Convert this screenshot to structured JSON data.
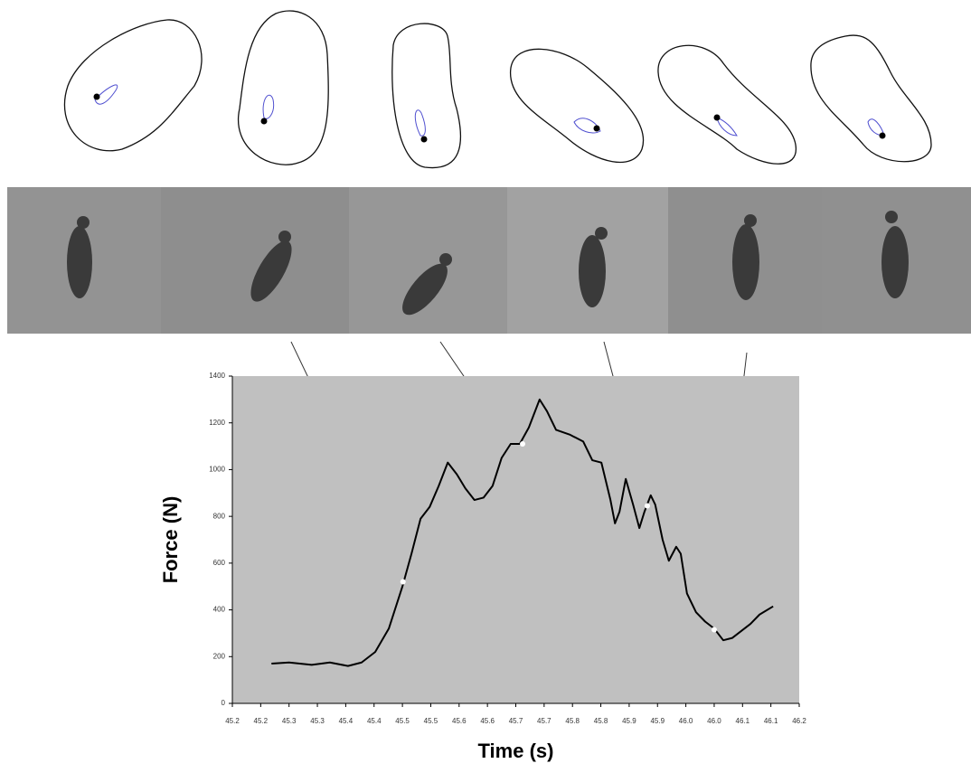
{
  "chart_data": {
    "type": "line",
    "xlabel": "Time (s)",
    "ylabel": "Force (N)",
    "xlim": [
      45.2,
      46.2
    ],
    "ylim": [
      0,
      1400
    ],
    "xticks": [
      {
        "value": 45.2,
        "label": "45.2"
      },
      {
        "value": 45.25,
        "label": "45.2"
      },
      {
        "value": 45.3,
        "label": "45.3"
      },
      {
        "value": 45.35,
        "label": "45.3"
      },
      {
        "value": 45.4,
        "label": "45.4"
      },
      {
        "value": 45.45,
        "label": "45.4"
      },
      {
        "value": 45.5,
        "label": "45.5"
      },
      {
        "value": 45.55,
        "label": "45.5"
      },
      {
        "value": 45.6,
        "label": "45.6"
      },
      {
        "value": 45.65,
        "label": "45.6"
      },
      {
        "value": 45.7,
        "label": "45.7"
      },
      {
        "value": 45.75,
        "label": "45.7"
      },
      {
        "value": 45.8,
        "label": "45.8"
      },
      {
        "value": 45.85,
        "label": "45.8"
      },
      {
        "value": 45.9,
        "label": "45.9"
      },
      {
        "value": 45.95,
        "label": "45.9"
      },
      {
        "value": 46.0,
        "label": "46.0"
      },
      {
        "value": 46.05,
        "label": "46.0"
      },
      {
        "value": 46.1,
        "label": "46.1"
      },
      {
        "value": 46.15,
        "label": "46.1"
      },
      {
        "value": 46.2,
        "label": "46.2"
      }
    ],
    "yticks": [
      0,
      200,
      400,
      600,
      800,
      1000,
      1200,
      1400
    ],
    "background": "#c0c0c0",
    "series": [
      {
        "color": "#000000",
        "x": [
          45.269,
          45.3,
          45.34,
          45.372,
          45.404,
          45.428,
          45.452,
          45.476,
          45.5,
          45.516,
          45.532,
          45.548,
          45.564,
          45.58,
          45.596,
          45.611,
          45.627,
          45.643,
          45.659,
          45.675,
          45.691,
          45.707,
          45.723,
          45.742,
          45.755,
          45.771,
          45.795,
          45.819,
          45.835,
          45.851,
          45.867,
          45.875,
          45.883,
          45.894,
          45.907,
          45.918,
          45.927,
          45.938,
          45.946,
          45.959,
          45.97,
          45.983,
          45.991,
          46.002,
          46.018,
          46.034,
          46.05,
          46.066,
          46.082,
          46.098,
          46.114,
          46.13,
          46.154
        ],
        "values": [
          170,
          175,
          165,
          175,
          160,
          175,
          220,
          320,
          500,
          640,
          790,
          840,
          930,
          1030,
          980,
          920,
          870,
          880,
          930,
          1050,
          1110,
          1110,
          1180,
          1300,
          1250,
          1170,
          1150,
          1120,
          1040,
          1030,
          870,
          770,
          820,
          960,
          850,
          750,
          820,
          890,
          850,
          700,
          610,
          670,
          640,
          470,
          390,
          350,
          320,
          270,
          280,
          310,
          340,
          380,
          415
        ]
      }
    ],
    "highlight_points": {
      "color": "#ffffff",
      "x": [
        45.501,
        45.712,
        45.932,
        46.05
      ],
      "values": [
        520,
        1110,
        845,
        315
      ]
    }
  }
}
